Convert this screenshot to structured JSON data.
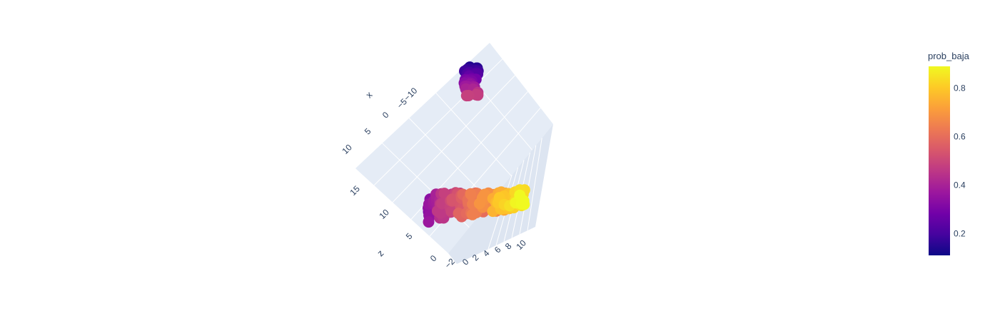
{
  "chart_data": {
    "type": "scatter3d",
    "title": "",
    "axes": {
      "x": {
        "title": "x",
        "ticks": [
          "−10",
          "−5",
          "0",
          "5",
          "10"
        ]
      },
      "y": {
        "title": "",
        "ticks": [
          "0",
          "2",
          "4",
          "6",
          "8",
          "10"
        ],
        "extra_ticks": [
          "−2"
        ]
      },
      "z": {
        "title": "z",
        "ticks": [
          "0",
          "5",
          "10",
          "15"
        ]
      }
    },
    "colorbar": {
      "title": "prob_baja",
      "ticks": [
        "0.2",
        "0.4",
        "0.6",
        "0.8"
      ],
      "range": [
        0.11,
        0.89
      ],
      "colorscale": [
        "#0d0887",
        "#46039f",
        "#7201a8",
        "#9c179e",
        "#bd3786",
        "#d8576b",
        "#ed7953",
        "#fb9f3a",
        "#fdca26",
        "#f0f921"
      ]
    },
    "grid": true,
    "legend": "none",
    "clusters": [
      {
        "name": "",
        "prob_baja_range": [
          0.12,
          0.52
        ]
      },
      {
        "name": "",
        "prob_baja_range": [
          0.35,
          0.89
        ]
      }
    ]
  }
}
